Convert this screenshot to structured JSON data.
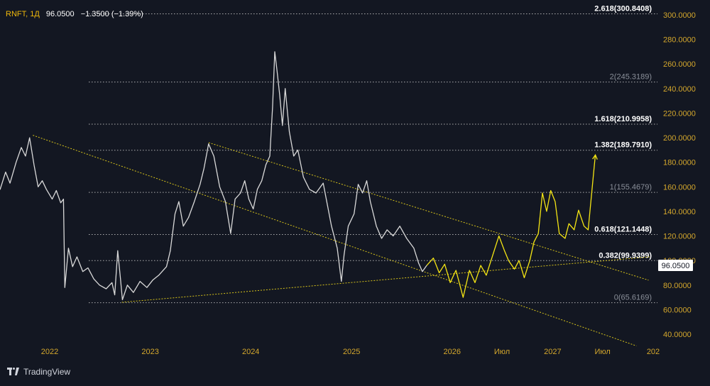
{
  "header": {
    "symbol": "RNFT",
    "interval": "1Д",
    "last": "96.0500",
    "change": "−1.3500 (−1.39%)"
  },
  "brand": {
    "name": "TradingView"
  },
  "colors": {
    "background": "#131722",
    "price_line": "#d9d9d9",
    "projection": "#f5e614",
    "trendline": "#d6c21a",
    "axis_text": "#d4a72c",
    "fib_line": "#c8c8c8",
    "fib_bold_text": "#ffffff",
    "fib_muted_text": "#8a8f99"
  },
  "chart_data": {
    "type": "line",
    "title": "",
    "xlabel": "",
    "ylabel": "",
    "ylim": [
      35,
      306
    ],
    "y_ticks": [
      40,
      60,
      80,
      100,
      120,
      140,
      160,
      180,
      200,
      220,
      240,
      260,
      280,
      300
    ],
    "y_tick_labels": [
      "40.0000",
      "60.0000",
      "80.0000",
      "100.0000",
      "120.0000",
      "140.0000",
      "160.0000",
      "180.0000",
      "200.0000",
      "220.0000",
      "240.0000",
      "260.0000",
      "280.0000",
      "300.0000"
    ],
    "x_ticks": [
      {
        "date": "2022-01-01",
        "label": "2022"
      },
      {
        "date": "2023-01-01",
        "label": "2023"
      },
      {
        "date": "2024-01-01",
        "label": "2024"
      },
      {
        "date": "2025-01-01",
        "label": "2025"
      },
      {
        "date": "2026-01-01",
        "label": "2026"
      },
      {
        "date": "2026-07-01",
        "label": "Июл"
      },
      {
        "date": "2027-01-01",
        "label": "2027"
      },
      {
        "date": "2027-07-01",
        "label": "Июл"
      },
      {
        "date": "2028-01-01",
        "label": "202"
      }
    ],
    "price_series": {
      "name": "",
      "points": [
        [
          "2021-06-20",
          165
        ],
        [
          "2021-07-05",
          158
        ],
        [
          "2021-07-25",
          172
        ],
        [
          "2021-08-10",
          163
        ],
        [
          "2021-09-01",
          180
        ],
        [
          "2021-09-20",
          192
        ],
        [
          "2021-10-05",
          185
        ],
        [
          "2021-10-20",
          200
        ],
        [
          "2021-11-05",
          178
        ],
        [
          "2021-11-20",
          160
        ],
        [
          "2021-12-05",
          165
        ],
        [
          "2021-12-20",
          158
        ],
        [
          "2022-01-10",
          150
        ],
        [
          "2022-01-25",
          157
        ],
        [
          "2022-02-10",
          147
        ],
        [
          "2022-02-20",
          150
        ],
        [
          "2022-02-25",
          78
        ],
        [
          "2022-03-10",
          110
        ],
        [
          "2022-03-25",
          95
        ],
        [
          "2022-04-10",
          103
        ],
        [
          "2022-05-01",
          91
        ],
        [
          "2022-05-20",
          94
        ],
        [
          "2022-06-10",
          85
        ],
        [
          "2022-07-01",
          80
        ],
        [
          "2022-07-25",
          77
        ],
        [
          "2022-08-15",
          82
        ],
        [
          "2022-08-25",
          72
        ],
        [
          "2022-09-05",
          108
        ],
        [
          "2022-09-15",
          85
        ],
        [
          "2022-09-22",
          68
        ],
        [
          "2022-10-10",
          80
        ],
        [
          "2022-11-01",
          74
        ],
        [
          "2022-11-25",
          83
        ],
        [
          "2022-12-20",
          78
        ],
        [
          "2023-01-10",
          84
        ],
        [
          "2023-02-01",
          88
        ],
        [
          "2023-03-01",
          95
        ],
        [
          "2023-03-15",
          108
        ],
        [
          "2023-04-01",
          138
        ],
        [
          "2023-04-15",
          148
        ],
        [
          "2023-05-01",
          128
        ],
        [
          "2023-05-20",
          135
        ],
        [
          "2023-06-10",
          148
        ],
        [
          "2023-07-01",
          162
        ],
        [
          "2023-07-15",
          175
        ],
        [
          "2023-08-01",
          195
        ],
        [
          "2023-08-20",
          185
        ],
        [
          "2023-09-10",
          160
        ],
        [
          "2023-10-01",
          148
        ],
        [
          "2023-10-20",
          122
        ],
        [
          "2023-11-05",
          150
        ],
        [
          "2023-11-25",
          155
        ],
        [
          "2023-12-10",
          165
        ],
        [
          "2023-12-25",
          150
        ],
        [
          "2024-01-10",
          142
        ],
        [
          "2024-01-25",
          158
        ],
        [
          "2024-02-10",
          165
        ],
        [
          "2024-02-25",
          178
        ],
        [
          "2024-03-10",
          185
        ],
        [
          "2024-03-20",
          225
        ],
        [
          "2024-03-28",
          270
        ],
        [
          "2024-04-05",
          255
        ],
        [
          "2024-04-15",
          235
        ],
        [
          "2024-04-25",
          210
        ],
        [
          "2024-05-05",
          240
        ],
        [
          "2024-05-20",
          205
        ],
        [
          "2024-06-05",
          185
        ],
        [
          "2024-06-20",
          190
        ],
        [
          "2024-07-10",
          168
        ],
        [
          "2024-08-01",
          158
        ],
        [
          "2024-08-25",
          155
        ],
        [
          "2024-09-20",
          163
        ],
        [
          "2024-10-20",
          128
        ],
        [
          "2024-11-10",
          110
        ],
        [
          "2024-11-25",
          83
        ],
        [
          "2024-12-05",
          105
        ],
        [
          "2024-12-20",
          128
        ],
        [
          "2025-01-10",
          138
        ],
        [
          "2025-01-25",
          162
        ],
        [
          "2025-02-10",
          155
        ],
        [
          "2025-02-25",
          165
        ],
        [
          "2025-03-10",
          148
        ],
        [
          "2025-04-01",
          128
        ],
        [
          "2025-04-20",
          118
        ],
        [
          "2025-05-10",
          125
        ],
        [
          "2025-06-01",
          120
        ],
        [
          "2025-06-25",
          128
        ],
        [
          "2025-07-20",
          118
        ],
        [
          "2025-08-15",
          110
        ],
        [
          "2025-09-01",
          98
        ],
        [
          "2025-09-15",
          91
        ],
        [
          "2025-10-01",
          96.05
        ]
      ]
    },
    "projection_series": {
      "name": "",
      "points": [
        [
          "2025-10-01",
          96
        ],
        [
          "2025-10-25",
          102
        ],
        [
          "2025-11-15",
          90
        ],
        [
          "2025-12-05",
          97
        ],
        [
          "2025-12-25",
          82
        ],
        [
          "2026-01-15",
          92
        ],
        [
          "2026-02-10",
          70
        ],
        [
          "2026-03-05",
          92
        ],
        [
          "2026-03-25",
          82
        ],
        [
          "2026-04-15",
          96
        ],
        [
          "2026-05-05",
          88
        ],
        [
          "2026-05-25",
          102
        ],
        [
          "2026-06-20",
          120
        ],
        [
          "2026-07-10",
          108
        ],
        [
          "2026-07-25",
          100
        ],
        [
          "2026-08-15",
          93
        ],
        [
          "2026-09-01",
          100
        ],
        [
          "2026-09-20",
          86
        ],
        [
          "2026-10-10",
          100
        ],
        [
          "2026-10-25",
          115
        ],
        [
          "2026-11-10",
          122
        ],
        [
          "2026-11-25",
          155
        ],
        [
          "2026-12-10",
          140
        ],
        [
          "2026-12-25",
          157
        ],
        [
          "2027-01-10",
          148
        ],
        [
          "2027-01-25",
          122
        ],
        [
          "2027-02-15",
          118
        ],
        [
          "2027-03-01",
          130
        ],
        [
          "2027-03-20",
          125
        ],
        [
          "2027-04-05",
          141
        ],
        [
          "2027-04-25",
          128
        ],
        [
          "2027-05-10",
          125
        ],
        [
          "2027-06-05",
          186
        ]
      ]
    },
    "trendlines": [
      {
        "from": [
          "2021-11-01",
          202
        ],
        "to": [
          "2027-11-01",
          30.5
        ]
      },
      {
        "from": [
          "2023-08-01",
          196
        ],
        "to": [
          "2027-12-15",
          84
        ]
      },
      {
        "from": [
          "2022-09-20",
          66
        ],
        "to": [
          "2027-12-20",
          103
        ]
      }
    ],
    "fib_levels": [
      {
        "value": 65.6169,
        "label": "0(65.6169)",
        "bold": false
      },
      {
        "value": 99.9399,
        "label": "0.382(99.9399)",
        "bold": true
      },
      {
        "value": 121.1448,
        "label": "0.618(121.1448)",
        "bold": true
      },
      {
        "value": 155.4679,
        "label": "1(155.4679)",
        "bold": false
      },
      {
        "value": 189.791,
        "label": "1.382(189.7910)",
        "bold": true
      },
      {
        "value": 210.9958,
        "label": "1.618(210.9958)",
        "bold": true
      },
      {
        "value": 245.3189,
        "label": "2(245.3189)",
        "bold": false
      },
      {
        "value": 300.8408,
        "label": "2.618(300.8408)",
        "bold": true
      }
    ],
    "last_price_label": "96.0500",
    "last_price_value": 96.05
  }
}
